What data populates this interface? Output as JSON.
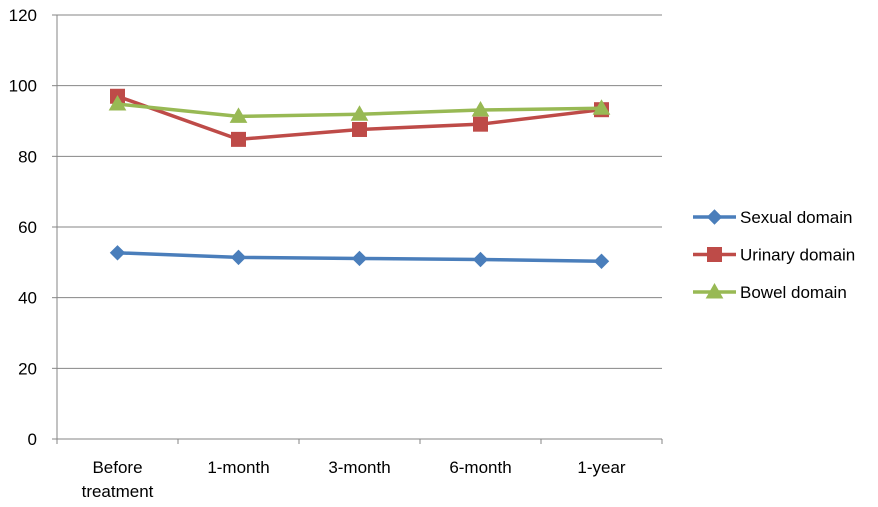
{
  "chart_data": {
    "type": "line",
    "title": "",
    "xlabel": "",
    "ylabel": "",
    "categories": [
      "Before treatment",
      "1-month",
      "3-month",
      "6-month",
      "1-year"
    ],
    "ylim": [
      0,
      120
    ],
    "yticks": [
      0,
      20,
      40,
      60,
      80,
      100,
      120
    ],
    "grid": "horizontal",
    "legend_position": "right",
    "series": [
      {
        "name": "Sexual domain",
        "color": "#4a7ebb",
        "marker": "diamond",
        "values": [
          52.7,
          51.4,
          51.1,
          50.8,
          50.3
        ]
      },
      {
        "name": "Urinary domain",
        "color": "#be4b48",
        "marker": "square",
        "values": [
          97.0,
          84.8,
          87.6,
          89.1,
          93.2
        ]
      },
      {
        "name": "Bowel domain",
        "color": "#98b954",
        "marker": "triangle",
        "values": [
          94.8,
          91.3,
          91.9,
          93.1,
          93.6
        ]
      }
    ]
  }
}
